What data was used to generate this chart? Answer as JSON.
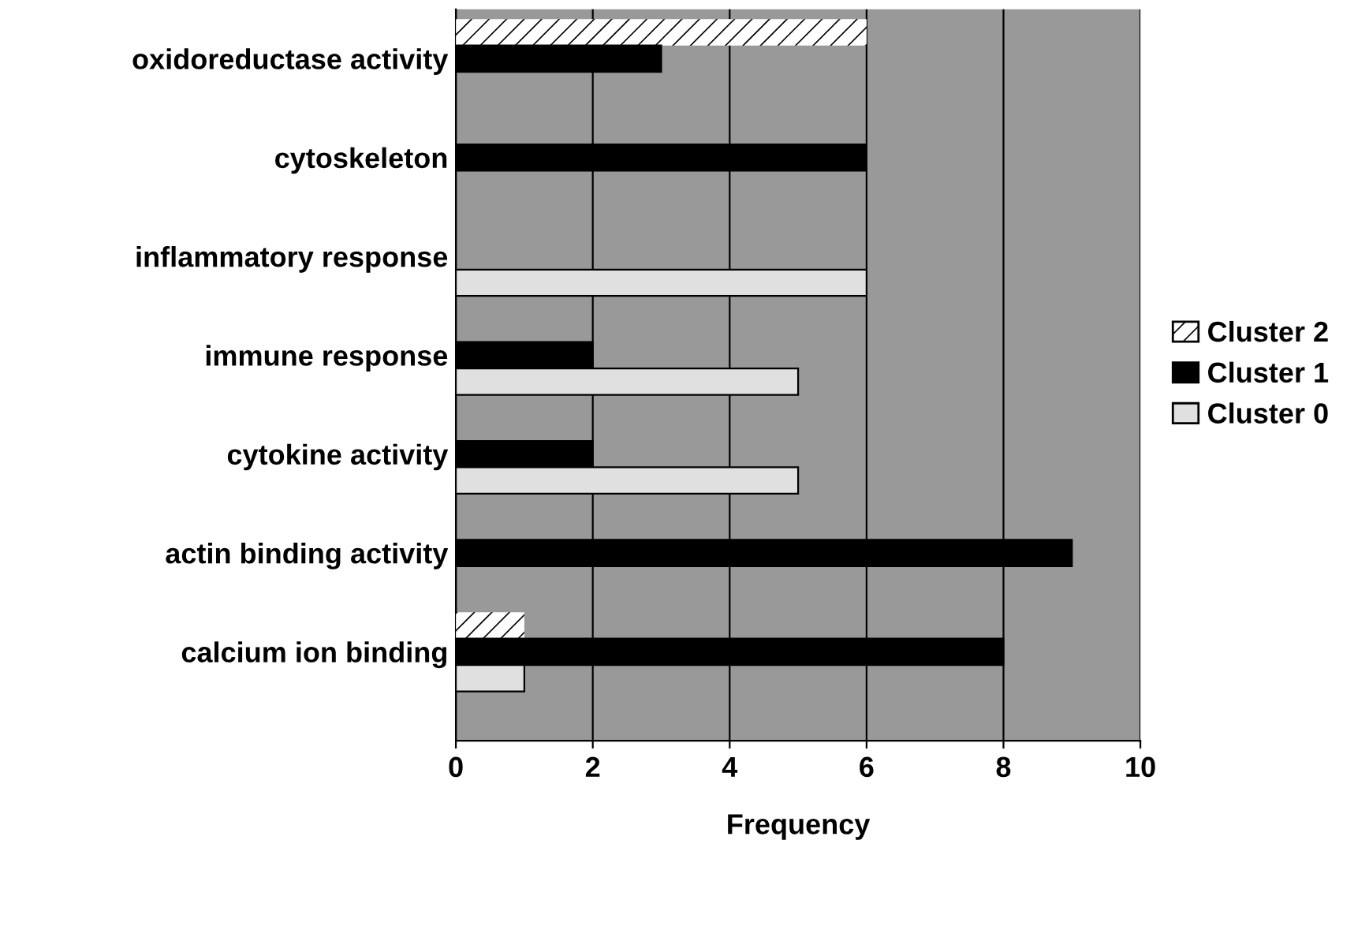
{
  "chart_data": {
    "type": "bar",
    "orientation": "horizontal",
    "xlabel": "Frequency",
    "categories": [
      "oxidoreductase activity",
      "cytoskeleton",
      "inflammatory response",
      "immune response",
      "cytokine activity",
      "actin binding activity",
      "calcium ion binding"
    ],
    "series": [
      {
        "name": "Cluster 2",
        "color": "#ffffff",
        "values": [
          6,
          null,
          null,
          null,
          null,
          null,
          1
        ]
      },
      {
        "name": "Cluster 1",
        "color": "#000000",
        "values": [
          3,
          6,
          null,
          2,
          2,
          9,
          8
        ]
      },
      {
        "name": "Cluster 0",
        "color": "#e0e0e0",
        "values": [
          null,
          null,
          6,
          5,
          5,
          null,
          1
        ]
      }
    ],
    "xlim": [
      0,
      10
    ],
    "xticks": [
      0,
      2,
      4,
      6,
      8,
      10
    ],
    "grid": "x",
    "legend": "right"
  }
}
